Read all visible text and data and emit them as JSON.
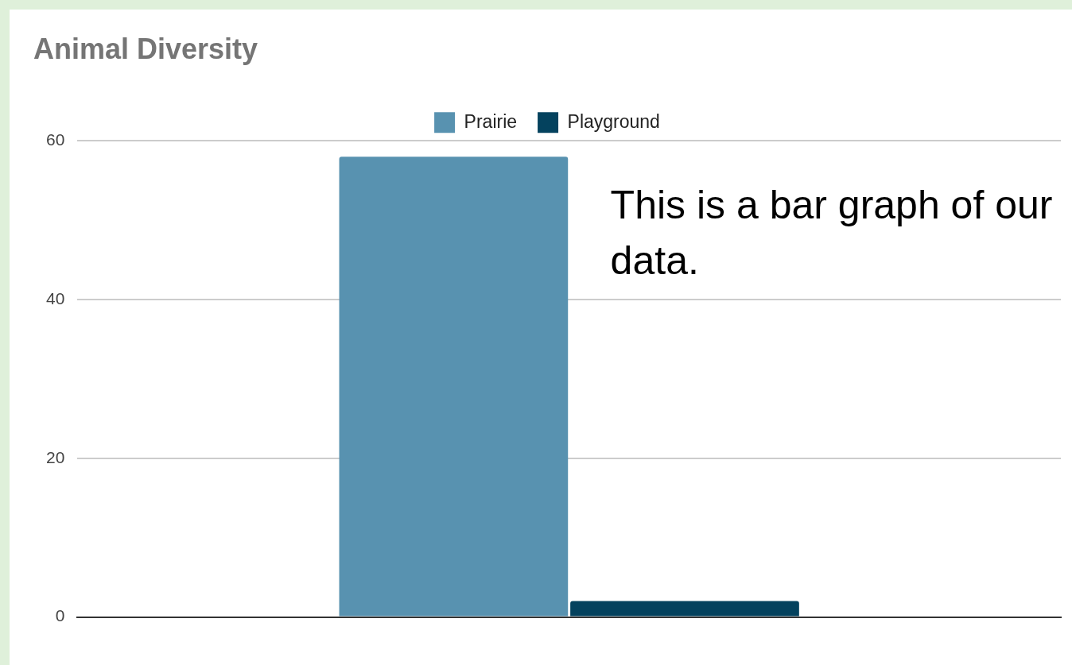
{
  "chart_data": {
    "type": "bar",
    "title": "Animal Diversity",
    "categories": [
      null
    ],
    "series": [
      {
        "name": "Prairie",
        "color": "#5892b0",
        "values": [
          58
        ]
      },
      {
        "name": "Playground",
        "color": "#04425e",
        "values": [
          2
        ]
      }
    ],
    "ylim": [
      0,
      60
    ],
    "yticks": [
      0,
      20,
      40,
      60
    ],
    "grid": "y",
    "legend": "top",
    "annotations": [
      "This is a bar graph of our data."
    ]
  }
}
